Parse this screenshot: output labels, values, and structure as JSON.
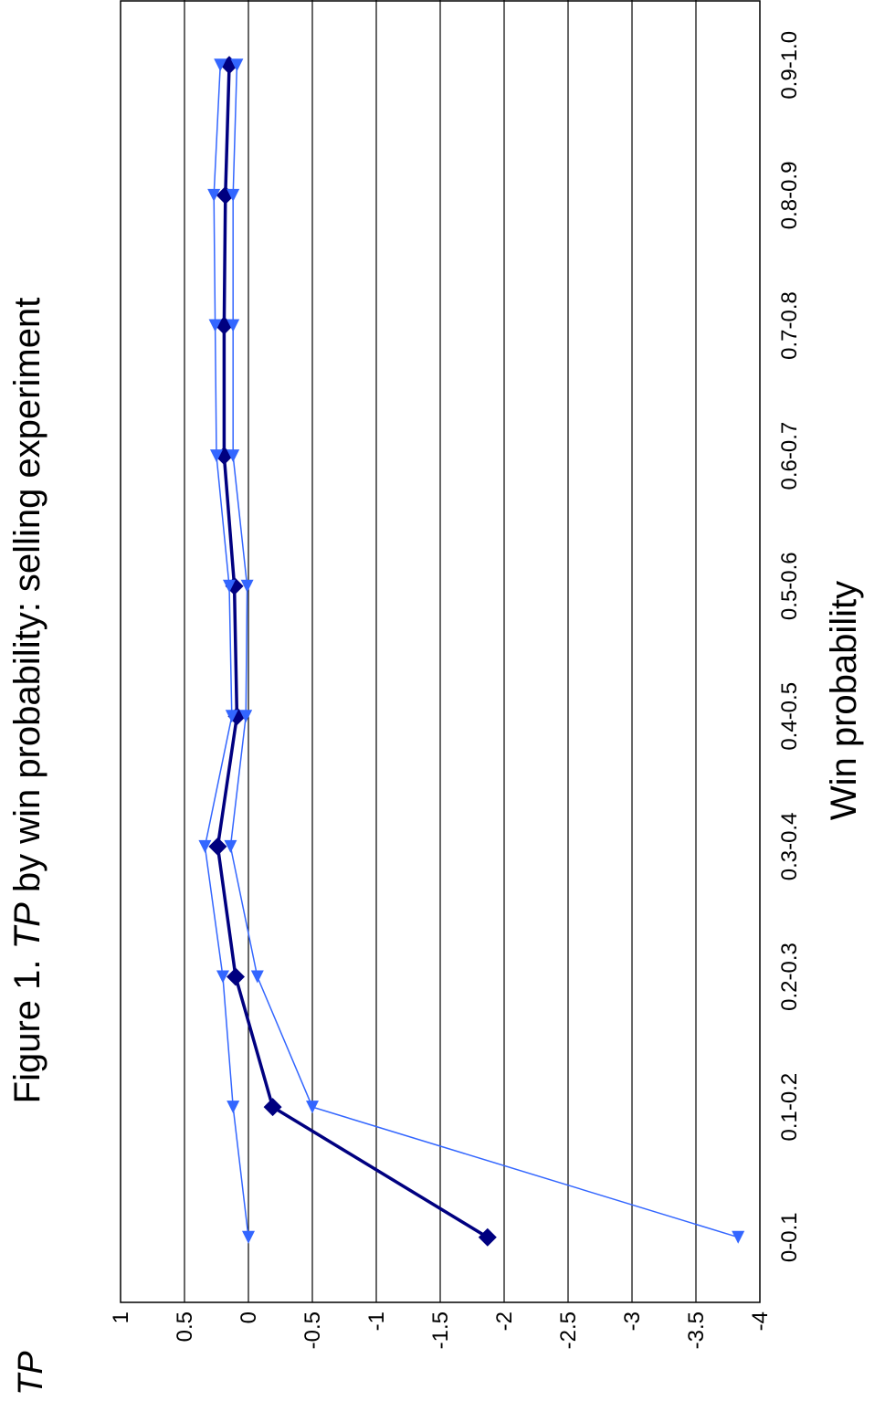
{
  "chart_data": {
    "type": "line",
    "title": {
      "prefix": "Figure 1. ",
      "italic": "TP",
      "suffix": " by win probability: selling experiment"
    },
    "ylabel": "TP",
    "xlabel": "Win probability",
    "categories": [
      "0-0.1",
      "0.1-0.2",
      "0.2-0.3",
      "0.3-0.4",
      "0.4-0.5",
      "0.5-0.6",
      "0.6-0.7",
      "0.7-0.8",
      "0.8-0.9",
      "0.9-1.0"
    ],
    "ylim": [
      -4,
      1
    ],
    "yticks": [
      "1",
      "0.5",
      "0",
      "-0.5",
      "-1",
      "-1.5",
      "-2",
      "-2.5",
      "-3",
      "-3.5",
      "-4"
    ],
    "grid": true,
    "series": [
      {
        "values": [
          -1.87,
          -0.19,
          0.1,
          0.24,
          0.09,
          0.11,
          0.19,
          0.19,
          0.18,
          0.15
        ],
        "color": "#000080",
        "marker": "diamond"
      },
      {
        "values": [
          0.0,
          0.12,
          0.2,
          0.34,
          0.13,
          0.15,
          0.25,
          0.26,
          0.27,
          0.22
        ],
        "color": "#3366ff",
        "marker": "triangle"
      },
      {
        "values": [
          -3.83,
          -0.5,
          -0.07,
          0.14,
          0.02,
          0.01,
          0.12,
          0.12,
          0.12,
          0.09
        ],
        "color": "#3366ff",
        "marker": "triangle"
      }
    ]
  }
}
